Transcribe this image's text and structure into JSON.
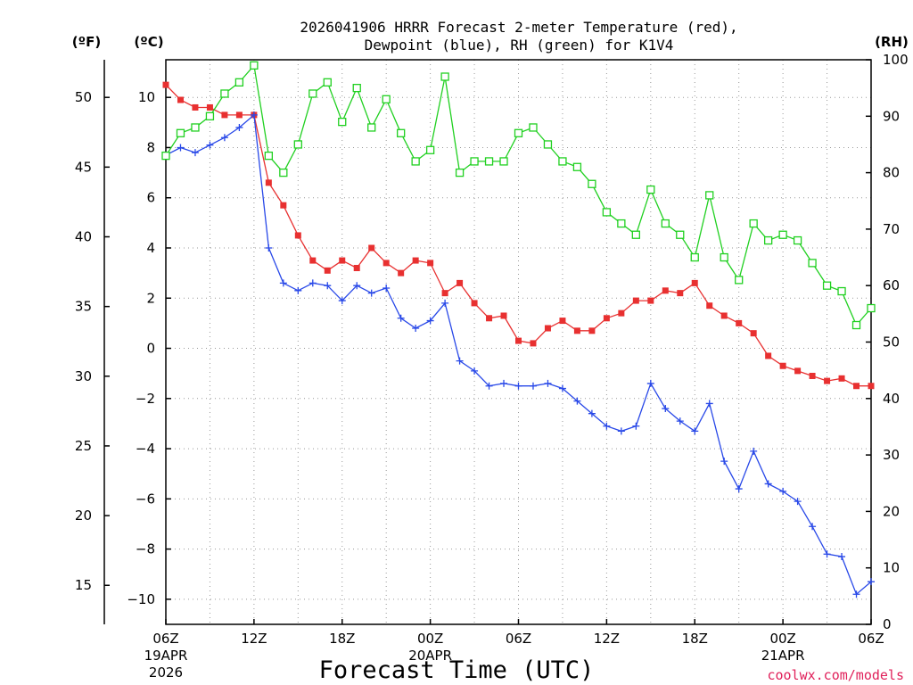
{
  "chart_data": {
    "type": "line",
    "title_line1": "2026041906 HRRR Forecast 2-meter Temperature (red),",
    "title_line2": "Dewpoint (blue), RH (green) for K1V4",
    "xlabel": "Forecast Time (UTC)",
    "credit": "coolwx.com/models",
    "units": {
      "fahrenheit": "(ºF)",
      "celsius": "(ºC)",
      "rh": "(RH)"
    },
    "x_range_hours": [
      0,
      48
    ],
    "x_ticks": [
      {
        "hour": 0,
        "label": "06Z",
        "date": "19APR",
        "year": "2026"
      },
      {
        "hour": 6,
        "label": "12Z"
      },
      {
        "hour": 12,
        "label": "18Z"
      },
      {
        "hour": 18,
        "label": "00Z",
        "date": "20APR"
      },
      {
        "hour": 24,
        "label": "06Z"
      },
      {
        "hour": 30,
        "label": "12Z"
      },
      {
        "hour": 36,
        "label": "18Z"
      },
      {
        "hour": 42,
        "label": "00Z",
        "date": "21APR"
      },
      {
        "hour": 48,
        "label": "06Z"
      }
    ],
    "y_celsius": {
      "range": [
        -11,
        11.5
      ],
      "ticks": [
        "10",
        "8",
        "6",
        "4",
        "2",
        "0",
        "−2",
        "−4",
        "−6",
        "−8",
        "−10"
      ],
      "tick_values": [
        10,
        8,
        6,
        4,
        2,
        0,
        -2,
        -4,
        -6,
        -8,
        -10
      ]
    },
    "y_fahrenheit": {
      "ticks": [
        "50",
        "45",
        "40",
        "35",
        "30",
        "25",
        "20",
        "15"
      ],
      "tick_values": [
        50,
        45,
        40,
        35,
        30,
        25,
        20,
        15
      ]
    },
    "y_rh": {
      "range": [
        0,
        100
      ],
      "ticks": [
        "100",
        "90",
        "80",
        "70",
        "60",
        "50",
        "40",
        "30",
        "20",
        "10",
        "0"
      ],
      "tick_values": [
        100,
        90,
        80,
        70,
        60,
        50,
        40,
        30,
        20,
        10,
        0
      ]
    },
    "series": [
      {
        "name": "Temperature",
        "color": "#e83030",
        "axis": "celsius",
        "marker": "filled-square",
        "values": [
          10.5,
          9.9,
          9.6,
          9.6,
          9.3,
          9.3,
          9.3,
          6.6,
          5.7,
          4.5,
          3.5,
          3.1,
          3.5,
          3.2,
          4.0,
          3.4,
          3.0,
          3.5,
          3.4,
          2.2,
          2.6,
          1.8,
          1.2,
          1.3,
          0.3,
          0.2,
          0.8,
          1.1,
          0.7,
          0.7,
          1.2,
          1.4,
          1.9,
          1.9,
          2.3,
          2.2,
          2.6,
          1.7,
          1.3,
          1.0,
          0.6,
          -0.3,
          -0.7,
          -0.9,
          -1.1,
          -1.3,
          -1.2,
          -1.5,
          -1.5
        ]
      },
      {
        "name": "Dewpoint",
        "color": "#2848e8",
        "axis": "celsius",
        "marker": "plus",
        "values": [
          7.7,
          8.0,
          7.8,
          8.1,
          8.4,
          8.8,
          9.3,
          4.0,
          2.6,
          2.3,
          2.6,
          2.5,
          1.9,
          2.5,
          2.2,
          2.4,
          1.2,
          0.8,
          1.1,
          1.8,
          -0.5,
          -0.9,
          -1.5,
          -1.4,
          -1.5,
          -1.5,
          -1.4,
          -1.6,
          -2.1,
          -2.6,
          -3.1,
          -3.3,
          -3.1,
          -1.4,
          -2.4,
          -2.9,
          -3.3,
          -2.2,
          -4.5,
          -5.6,
          -4.1,
          -5.4,
          -5.7,
          -6.1,
          -7.1,
          -8.2,
          -8.3,
          -9.8,
          -9.3
        ]
      },
      {
        "name": "RH",
        "color": "#20d020",
        "axis": "rh",
        "marker": "open-square",
        "values": [
          83,
          87,
          88,
          90,
          94,
          96,
          99,
          83,
          80,
          85,
          94,
          96,
          89,
          95,
          88,
          93,
          87,
          82,
          84,
          97,
          80,
          82,
          82,
          82,
          87,
          88,
          85,
          82,
          81,
          78,
          73,
          71,
          69,
          77,
          71,
          69,
          65,
          76,
          65,
          61,
          71,
          68,
          69,
          68,
          64,
          60,
          59,
          53,
          56
        ]
      }
    ]
  }
}
